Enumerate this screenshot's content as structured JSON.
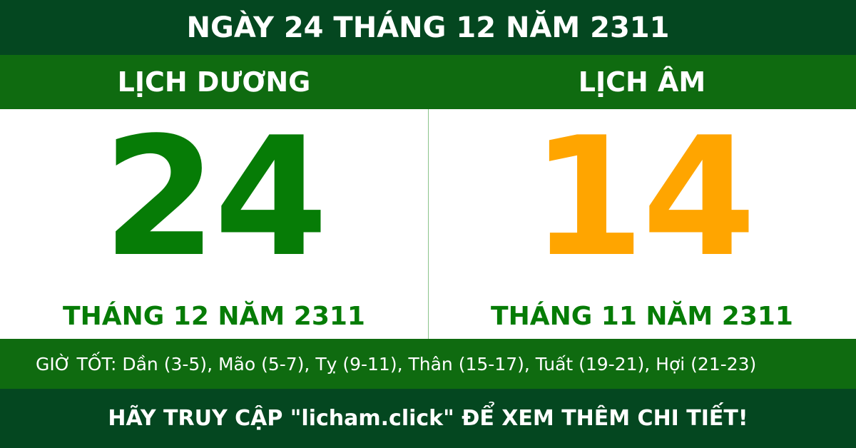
{
  "title": "NGÀY 24 THÁNG 12 NĂM 2311",
  "solar": {
    "label": "LỊCH DƯƠNG",
    "day": "24",
    "month_year": "THÁNG 12 NĂM 2311",
    "color": "#067c06"
  },
  "lunar": {
    "label": "LỊCH ÂM",
    "day": "14",
    "month_year": "THÁNG 11 NĂM 2311",
    "color": "#ffa500"
  },
  "good_hours": "GIỜ TỐT: Dần (3-5), Mão (5-7), Tỵ (9-11), Thân (15-17), Tuất (19-21), Hợi (21-23)",
  "footer": "HÃY TRUY CẬP \"licham.click\" ĐỂ XEM THÊM CHI TIẾT!"
}
